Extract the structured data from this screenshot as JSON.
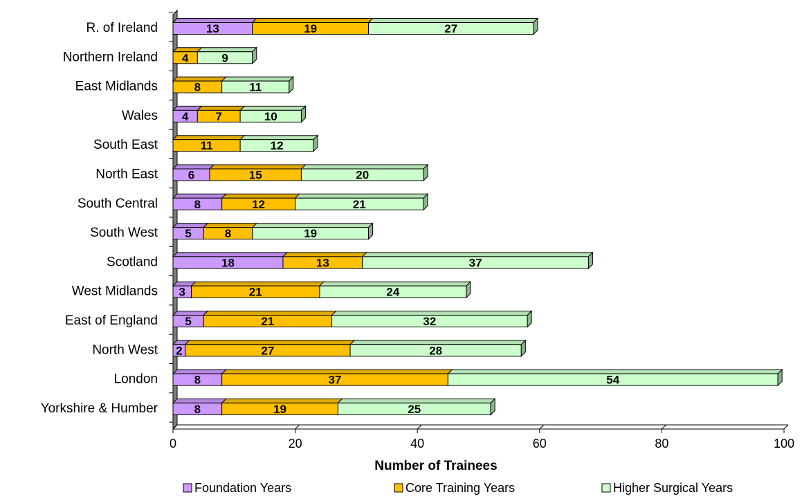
{
  "chart_data": {
    "type": "bar",
    "orientation": "horizontal",
    "stacked": true,
    "three_d": true,
    "categories": [
      "R. of Ireland",
      "Northern Ireland",
      "East Midlands",
      "Wales",
      "South East",
      "North East",
      "South Central",
      "South West",
      "Scotland",
      "West Midlands",
      "East of England",
      "North West",
      "London",
      "Yorkshire & Humber"
    ],
    "series": [
      {
        "name": "Foundation Years",
        "color": "#CC99FF",
        "values": [
          13,
          0,
          0,
          4,
          0,
          6,
          8,
          5,
          18,
          3,
          5,
          2,
          8,
          8
        ]
      },
      {
        "name": "Core Training Years",
        "color": "#FFC000",
        "values": [
          19,
          4,
          8,
          7,
          11,
          15,
          12,
          8,
          13,
          21,
          21,
          27,
          37,
          19
        ]
      },
      {
        "name": "Higher Surgical Years",
        "color": "#CCFFCC",
        "values": [
          27,
          9,
          11,
          10,
          12,
          20,
          21,
          19,
          37,
          24,
          32,
          28,
          54,
          25
        ]
      }
    ],
    "xlabel": "Number of Trainees",
    "ylabel": "",
    "xlim": [
      0,
      100
    ],
    "xticks": [
      0,
      20,
      40,
      60,
      80,
      100
    ],
    "grid": false,
    "legend_position": "bottom"
  }
}
